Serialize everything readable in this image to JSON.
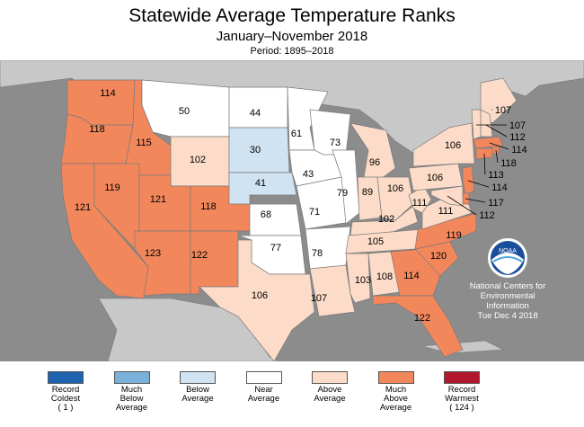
{
  "title": "Statewide Average Temperature Ranks",
  "subtitle": "January–November 2018",
  "period": "Period: 1895–2018",
  "colors": {
    "ocean": "#8c8c8c",
    "land_outside": "#c8c8c8",
    "state_border": "#7a7a7a",
    "record_coldest": "#1f63b0",
    "much_below": "#79b1d8",
    "below": "#cfe3f2",
    "near": "#ffffff",
    "above": "#fcdcc8",
    "much_above": "#f2875c",
    "record_warmest": "#b2182b"
  },
  "legend": [
    {
      "key": "record_coldest",
      "line1": "Record",
      "line2": "Coldest",
      "line3": "( 1 )"
    },
    {
      "key": "much_below",
      "line1": "Much",
      "line2": "Below",
      "line3": "Average"
    },
    {
      "key": "below",
      "line1": "Below",
      "line2": "Average",
      "line3": ""
    },
    {
      "key": "near",
      "line1": "Near",
      "line2": "Average",
      "line3": ""
    },
    {
      "key": "above",
      "line1": "Above",
      "line2": "Average",
      "line3": ""
    },
    {
      "key": "much_above",
      "line1": "Much",
      "line2": "Above",
      "line3": "Average"
    },
    {
      "key": "record_warmest",
      "line1": "Record",
      "line2": "Warmest",
      "line3": "( 124 )"
    }
  ],
  "states": [
    {
      "name": "WA",
      "rank": "114",
      "category": "much_above"
    },
    {
      "name": "OR",
      "rank": "118",
      "category": "much_above"
    },
    {
      "name": "CA",
      "rank": "121",
      "category": "much_above"
    },
    {
      "name": "ID",
      "rank": "115",
      "category": "much_above"
    },
    {
      "name": "NV",
      "rank": "119",
      "category": "much_above"
    },
    {
      "name": "MT",
      "rank": "50",
      "category": "near"
    },
    {
      "name": "WY",
      "rank": "102",
      "category": "above"
    },
    {
      "name": "UT",
      "rank": "121",
      "category": "much_above"
    },
    {
      "name": "AZ",
      "rank": "123",
      "category": "much_above"
    },
    {
      "name": "CO",
      "rank": "118",
      "category": "much_above"
    },
    {
      "name": "NM",
      "rank": "122",
      "category": "much_above"
    },
    {
      "name": "ND",
      "rank": "44",
      "category": "near"
    },
    {
      "name": "SD",
      "rank": "30",
      "category": "below"
    },
    {
      "name": "NE",
      "rank": "41",
      "category": "below"
    },
    {
      "name": "KS",
      "rank": "68",
      "category": "near"
    },
    {
      "name": "OK",
      "rank": "77",
      "category": "near"
    },
    {
      "name": "TX",
      "rank": "106",
      "category": "above"
    },
    {
      "name": "MN",
      "rank": "61",
      "category": "near"
    },
    {
      "name": "IA",
      "rank": "43",
      "category": "near"
    },
    {
      "name": "MO",
      "rank": "71",
      "category": "near"
    },
    {
      "name": "AR",
      "rank": "78",
      "category": "near"
    },
    {
      "name": "LA",
      "rank": "107",
      "category": "above"
    },
    {
      "name": "WI",
      "rank": "73",
      "category": "near"
    },
    {
      "name": "IL",
      "rank": "79",
      "category": "near"
    },
    {
      "name": "MI",
      "rank": "96",
      "category": "above"
    },
    {
      "name": "IN",
      "rank": "89",
      "category": "above"
    },
    {
      "name": "OH",
      "rank": "106",
      "category": "above"
    },
    {
      "name": "KY",
      "rank": "102",
      "category": "above"
    },
    {
      "name": "TN",
      "rank": "105",
      "category": "above"
    },
    {
      "name": "MS",
      "rank": "103",
      "category": "above"
    },
    {
      "name": "AL",
      "rank": "108",
      "category": "above"
    },
    {
      "name": "GA",
      "rank": "114",
      "category": "much_above"
    },
    {
      "name": "FL",
      "rank": "122",
      "category": "much_above"
    },
    {
      "name": "SC",
      "rank": "120",
      "category": "much_above"
    },
    {
      "name": "NC",
      "rank": "119",
      "category": "much_above"
    },
    {
      "name": "VA",
      "rank": "111",
      "category": "above"
    },
    {
      "name": "WV",
      "rank": "111",
      "category": "above"
    },
    {
      "name": "PA",
      "rank": "106",
      "category": "above"
    },
    {
      "name": "NY",
      "rank": "106",
      "category": "above"
    },
    {
      "name": "ME",
      "rank": "107",
      "category": "above"
    },
    {
      "name": "VT",
      "rank": "107",
      "category": "above"
    },
    {
      "name": "NH",
      "rank": "112",
      "category": "above"
    },
    {
      "name": "MA",
      "rank": "114",
      "category": "much_above"
    },
    {
      "name": "RI",
      "rank": "118",
      "category": "much_above"
    },
    {
      "name": "CT",
      "rank": "113",
      "category": "much_above"
    },
    {
      "name": "NJ",
      "rank": "114",
      "category": "much_above"
    },
    {
      "name": "DE",
      "rank": "117",
      "category": "much_above"
    },
    {
      "name": "MD",
      "rank": "112",
      "category": "above"
    }
  ],
  "credit": {
    "line1": "National Centers for",
    "line2": "Environmental",
    "line3": "Information",
    "line4": "Tue Dec  4 2018",
    "logo_text": "NOAA"
  }
}
